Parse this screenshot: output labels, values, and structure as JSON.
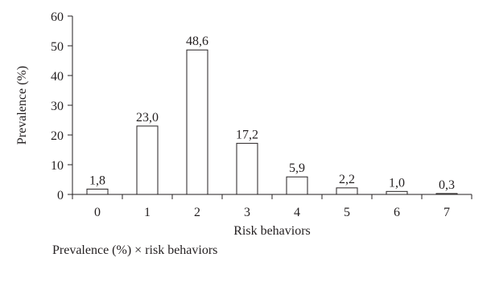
{
  "chart_data": {
    "type": "bar",
    "categories": [
      "0",
      "1",
      "2",
      "3",
      "4",
      "5",
      "6",
      "7"
    ],
    "values": [
      1.8,
      23.0,
      48.6,
      17.2,
      5.9,
      2.2,
      1.0,
      0.3
    ],
    "data_labels": [
      "1,8",
      "23,0",
      "48,6",
      "17,2",
      "5,9",
      "2,2",
      "1,0",
      "0,3"
    ],
    "xlabel": "Risk behaviors",
    "ylabel": "Prevalence (%)",
    "ylim": [
      0,
      60
    ],
    "yticks": [
      0,
      10,
      20,
      30,
      40,
      50,
      60
    ],
    "grid": false,
    "bar_fill": "#ffffff",
    "bar_stroke": "#231f20"
  },
  "caption": "Prevalence (%) × risk behaviors"
}
